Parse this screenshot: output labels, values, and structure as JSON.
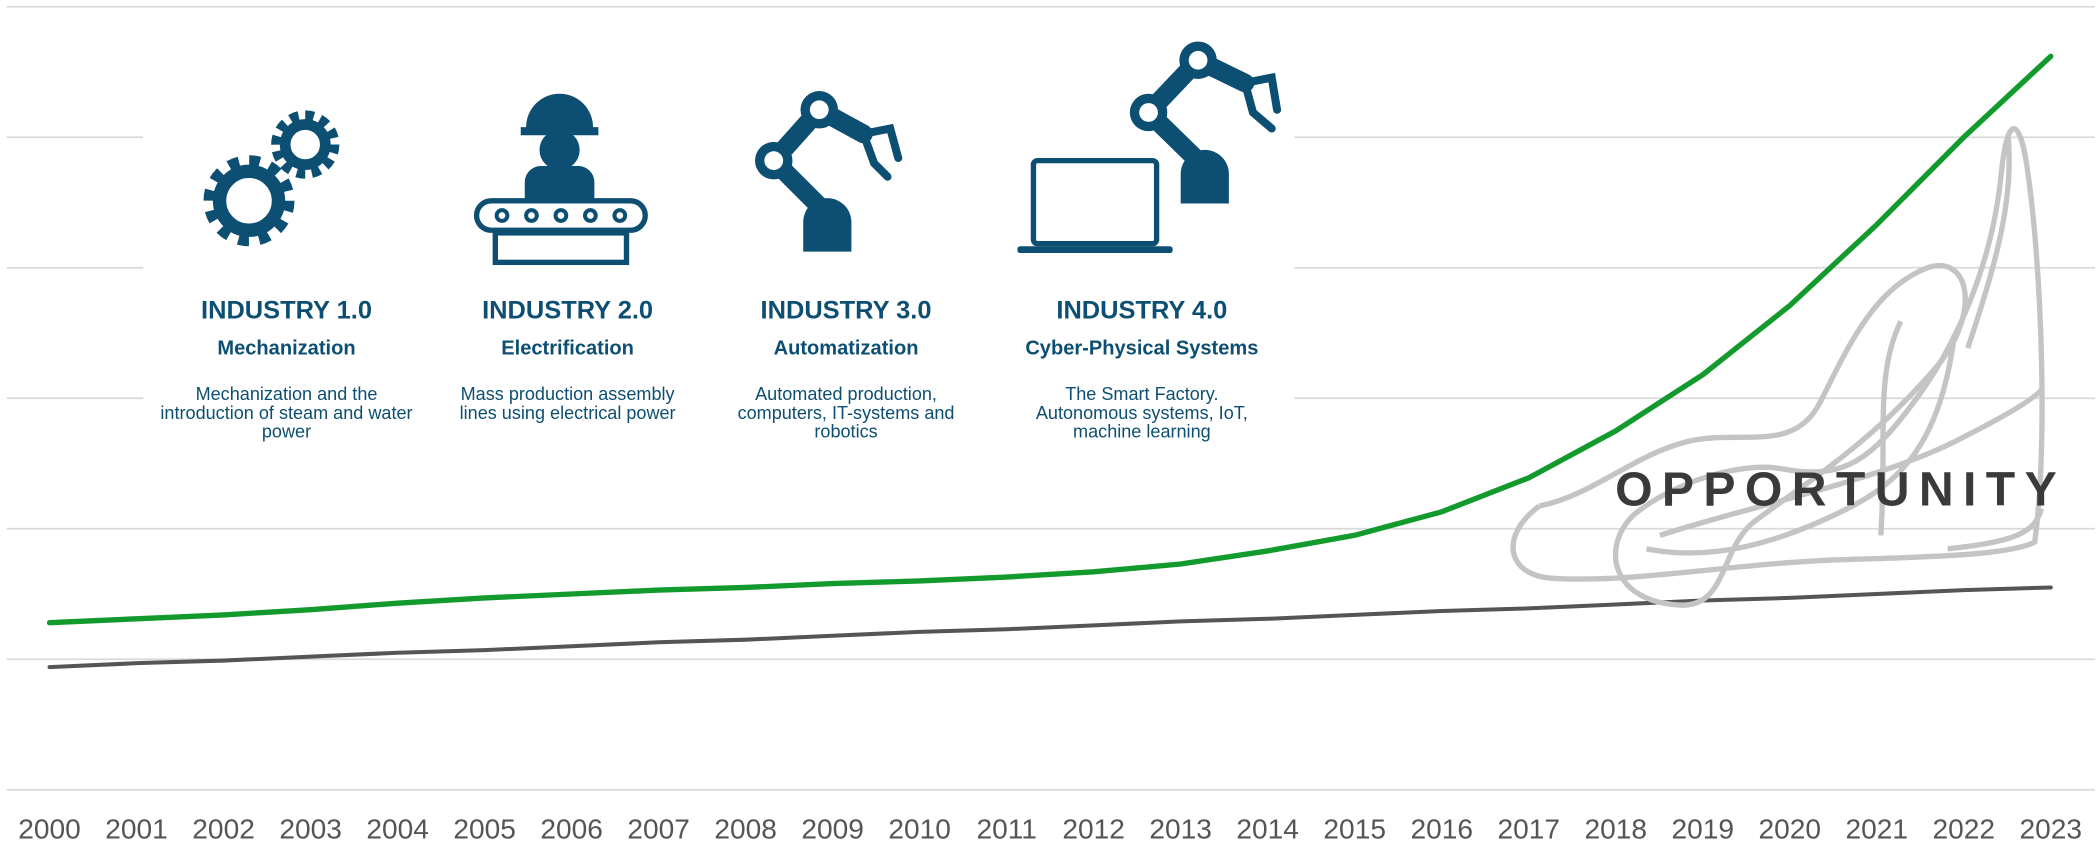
{
  "chart_data": {
    "type": "line",
    "categories": [
      "2000",
      "2001",
      "2002",
      "2003",
      "2004",
      "2005",
      "2006",
      "2007",
      "2008",
      "2009",
      "2010",
      "2011",
      "2012",
      "2013",
      "2014",
      "2015",
      "2016",
      "2017",
      "2018",
      "2019",
      "2020",
      "2021",
      "2022",
      "2023"
    ],
    "series": [
      {
        "color": "#139a2c",
        "values": [
          1.28,
          1.31,
          1.34,
          1.38,
          1.43,
          1.47,
          1.5,
          1.53,
          1.55,
          1.58,
          1.6,
          1.63,
          1.67,
          1.73,
          1.83,
          1.95,
          2.13,
          2.39,
          2.75,
          3.18,
          3.71,
          4.33,
          5.0,
          5.62
        ]
      },
      {
        "color": "#555555",
        "values": [
          0.94,
          0.97,
          0.99,
          1.02,
          1.05,
          1.07,
          1.1,
          1.13,
          1.15,
          1.18,
          1.21,
          1.23,
          1.26,
          1.29,
          1.31,
          1.34,
          1.37,
          1.39,
          1.42,
          1.45,
          1.47,
          1.5,
          1.53,
          1.55
        ]
      }
    ],
    "ylim": [
      0,
      6
    ],
    "ygrid": [
      0,
      1,
      2,
      3,
      4,
      5,
      6
    ],
    "grid": true,
    "annotation": "OPPORTUNITY"
  },
  "panels": [
    {
      "title": "INDUSTRY 1.0",
      "subtitle": "Mechanization",
      "description": "Mechanization and the introduction of steam and water power"
    },
    {
      "title": "INDUSTRY 2.0",
      "subtitle": "Electrification",
      "description": "Mass production assembly lines using electrical power"
    },
    {
      "title": "INDUSTRY 3.0",
      "subtitle": "Automatization",
      "description": "Automated production, computers, IT-systems and robotics"
    },
    {
      "title": "INDUSTRY 4.0",
      "subtitle": "Cyber-Physical Systems",
      "description": "The Smart Factory. Autonomous systems, IoT, machine learning"
    }
  ]
}
